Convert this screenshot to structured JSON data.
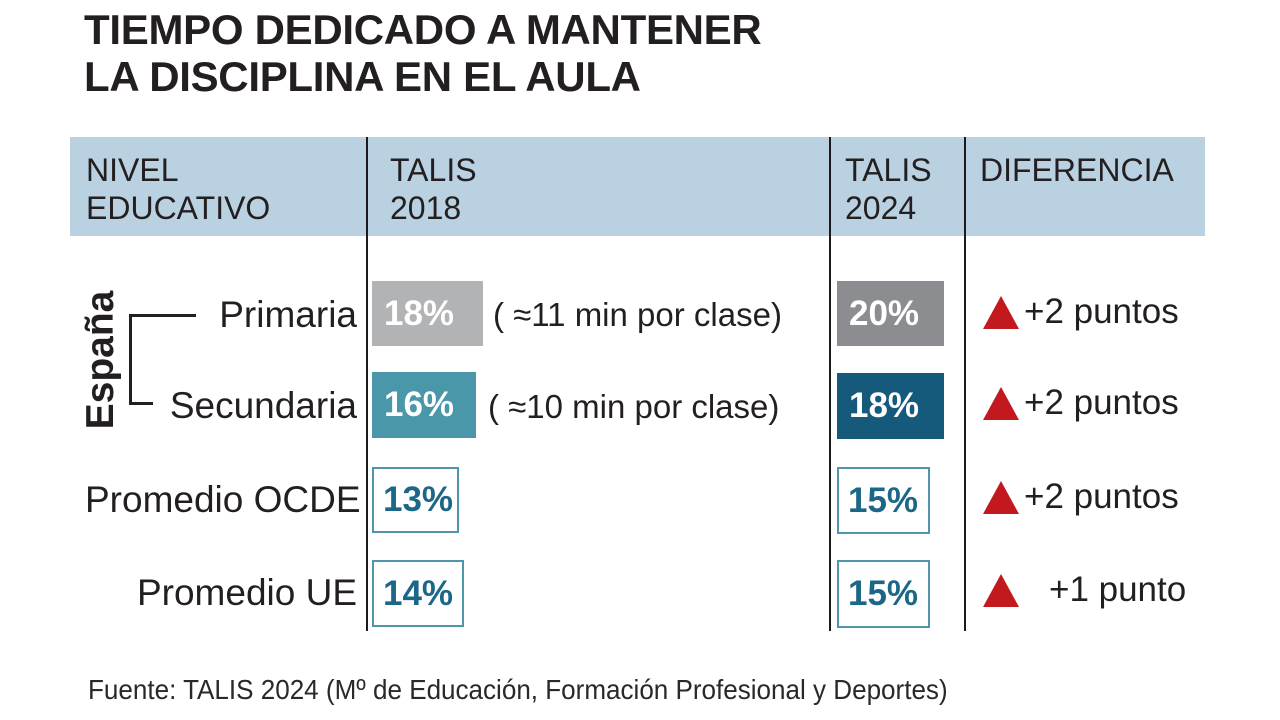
{
  "title": {
    "line1": "TIEMPO DEDICADO A MANTENER",
    "line2": "LA DISCIPLINA EN EL AULA"
  },
  "header": {
    "col_level": {
      "line1": "NIVEL",
      "line2": "EDUCATIVO"
    },
    "col_talis2018": {
      "line1": "TALIS",
      "line2": "2018"
    },
    "col_talis2024": {
      "line1": "TALIS",
      "line2": "2024"
    },
    "col_diferencia": {
      "line1": "DIFERENCIA",
      "line2": ""
    }
  },
  "group_label": "España",
  "rows": [
    {
      "label": "Primaria",
      "talis2018": "18%",
      "note": "( ≈11 min por clase)",
      "talis2024": "20%",
      "diff": "+2 puntos"
    },
    {
      "label": "Secundaria",
      "talis2018": "16%",
      "note": "( ≈10 min por clase)",
      "talis2024": "18%",
      "diff": "+2 puntos"
    },
    {
      "label": "Promedio OCDE",
      "talis2018": "13%",
      "talis2024": "15%",
      "diff": "+2 puntos"
    },
    {
      "label": "Promedio UE",
      "talis2018": "14%",
      "talis2024": "15%",
      "diff": "+1 punto"
    }
  ],
  "source": "Fuente: TALIS 2024 (Mº de Educación, Formación Profesional y Deportes)",
  "colors": {
    "ink": "#231f20",
    "header_bg": "#b9d1e0",
    "gray_2018": "#b2b3b5",
    "gray_2024": "#8b8d90",
    "teal_2018": "#4a97a9",
    "teal_2024": "#15597b",
    "outline_teal": "#4f96aa",
    "value_teal": "#1c6787",
    "diff_red": "#c2191f"
  },
  "chart_data": {
    "type": "table",
    "title": "TIEMPO DEDICADO A MANTENER LA DISCIPLINA EN EL AULA",
    "columns": [
      "NIVEL EDUCATIVO",
      "TALIS 2018",
      "TALIS 2024",
      "DIFERENCIA"
    ],
    "rows": [
      {
        "group": "España",
        "level": "Primaria",
        "talis_2018_pct": 18,
        "talis_2018_note": "≈11 min por clase",
        "talis_2024_pct": 20,
        "diferencia": "+2 puntos"
      },
      {
        "group": "España",
        "level": "Secundaria",
        "talis_2018_pct": 16,
        "talis_2018_note": "≈10 min por clase",
        "talis_2024_pct": 18,
        "diferencia": "+2 puntos"
      },
      {
        "group": "",
        "level": "Promedio OCDE",
        "talis_2018_pct": 13,
        "talis_2018_note": "",
        "talis_2024_pct": 15,
        "diferencia": "+2 puntos"
      },
      {
        "group": "",
        "level": "Promedio UE",
        "talis_2018_pct": 14,
        "talis_2018_note": "",
        "talis_2024_pct": 15,
        "diferencia": "+1 punto"
      }
    ],
    "source": "Fuente: TALIS 2024 (Mº de Educación, Formación Profesional y Deportes)"
  }
}
